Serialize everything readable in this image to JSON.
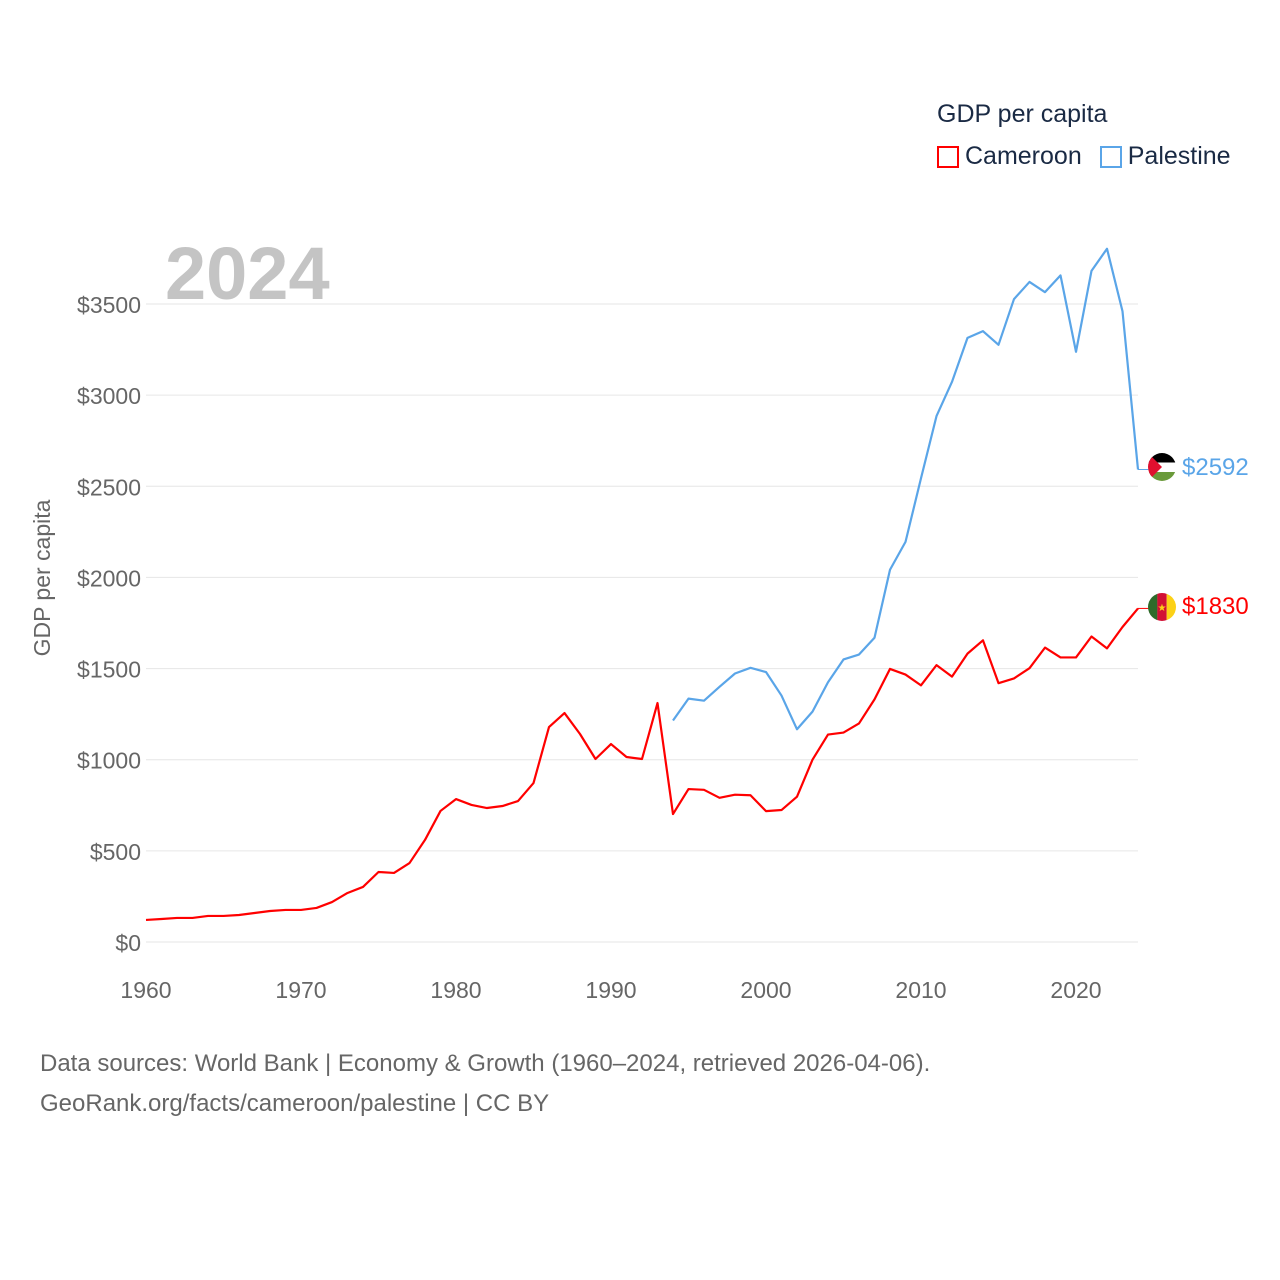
{
  "legend": {
    "title": "GDP per capita",
    "items": [
      {
        "label": "Cameroon",
        "color": "#ff0000"
      },
      {
        "label": "Palestine",
        "color": "#5aa5e8"
      }
    ]
  },
  "year_label": "2024",
  "footer": {
    "line1": "Data sources: World Bank | Economy & Growth (1960–2024, retrieved 2026-04-06).",
    "line2": "GeoRank.org/facts/cameroon/palestine | CC BY"
  },
  "chart_data": {
    "type": "line",
    "title": "GDP per capita",
    "xlabel": "",
    "ylabel": "GDP per capita",
    "xlim": [
      1960,
      2024
    ],
    "ylim": [
      0,
      3500
    ],
    "grid": true,
    "legend_position": "top-right",
    "x_ticks": [
      "1960",
      "1970",
      "1980",
      "1990",
      "2000",
      "2010",
      "2020"
    ],
    "y_ticks": [
      "$0",
      "$500",
      "$1000",
      "$1500",
      "$2000",
      "$2500",
      "$3000",
      "$3500"
    ],
    "series": [
      {
        "name": "Cameroon",
        "color": "#ff0000",
        "end_label": "$1830",
        "start_year": 1960,
        "values": [
          121,
          126,
          132,
          132,
          143,
          143,
          148,
          159,
          170,
          176,
          176,
          187,
          219,
          269,
          302,
          384,
          379,
          433,
          560,
          719,
          784,
          752,
          735,
          746,
          773,
          872,
          1179,
          1256,
          1141,
          1004,
          1086,
          1015,
          1004,
          1311,
          702,
          839,
          835,
          791,
          808,
          805,
          718,
          724,
          797,
          1000,
          1138,
          1149,
          1199,
          1331,
          1498,
          1467,
          1408,
          1519,
          1456,
          1582,
          1655,
          1420,
          1446,
          1502,
          1615,
          1561,
          1561,
          1676,
          1611,
          1728,
          1830
        ]
      },
      {
        "name": "Palestine",
        "color": "#5aa5e8",
        "end_label": "$2592",
        "start_year": 1994,
        "values": [
          1215,
          1335,
          1324,
          1400,
          1473,
          1504,
          1481,
          1352,
          1167,
          1264,
          1425,
          1550,
          1577,
          1669,
          2042,
          2195,
          2544,
          2885,
          3073,
          3314,
          3351,
          3276,
          3527,
          3621,
          3565,
          3657,
          3238,
          3682,
          3803,
          3460,
          2592
        ]
      }
    ]
  }
}
